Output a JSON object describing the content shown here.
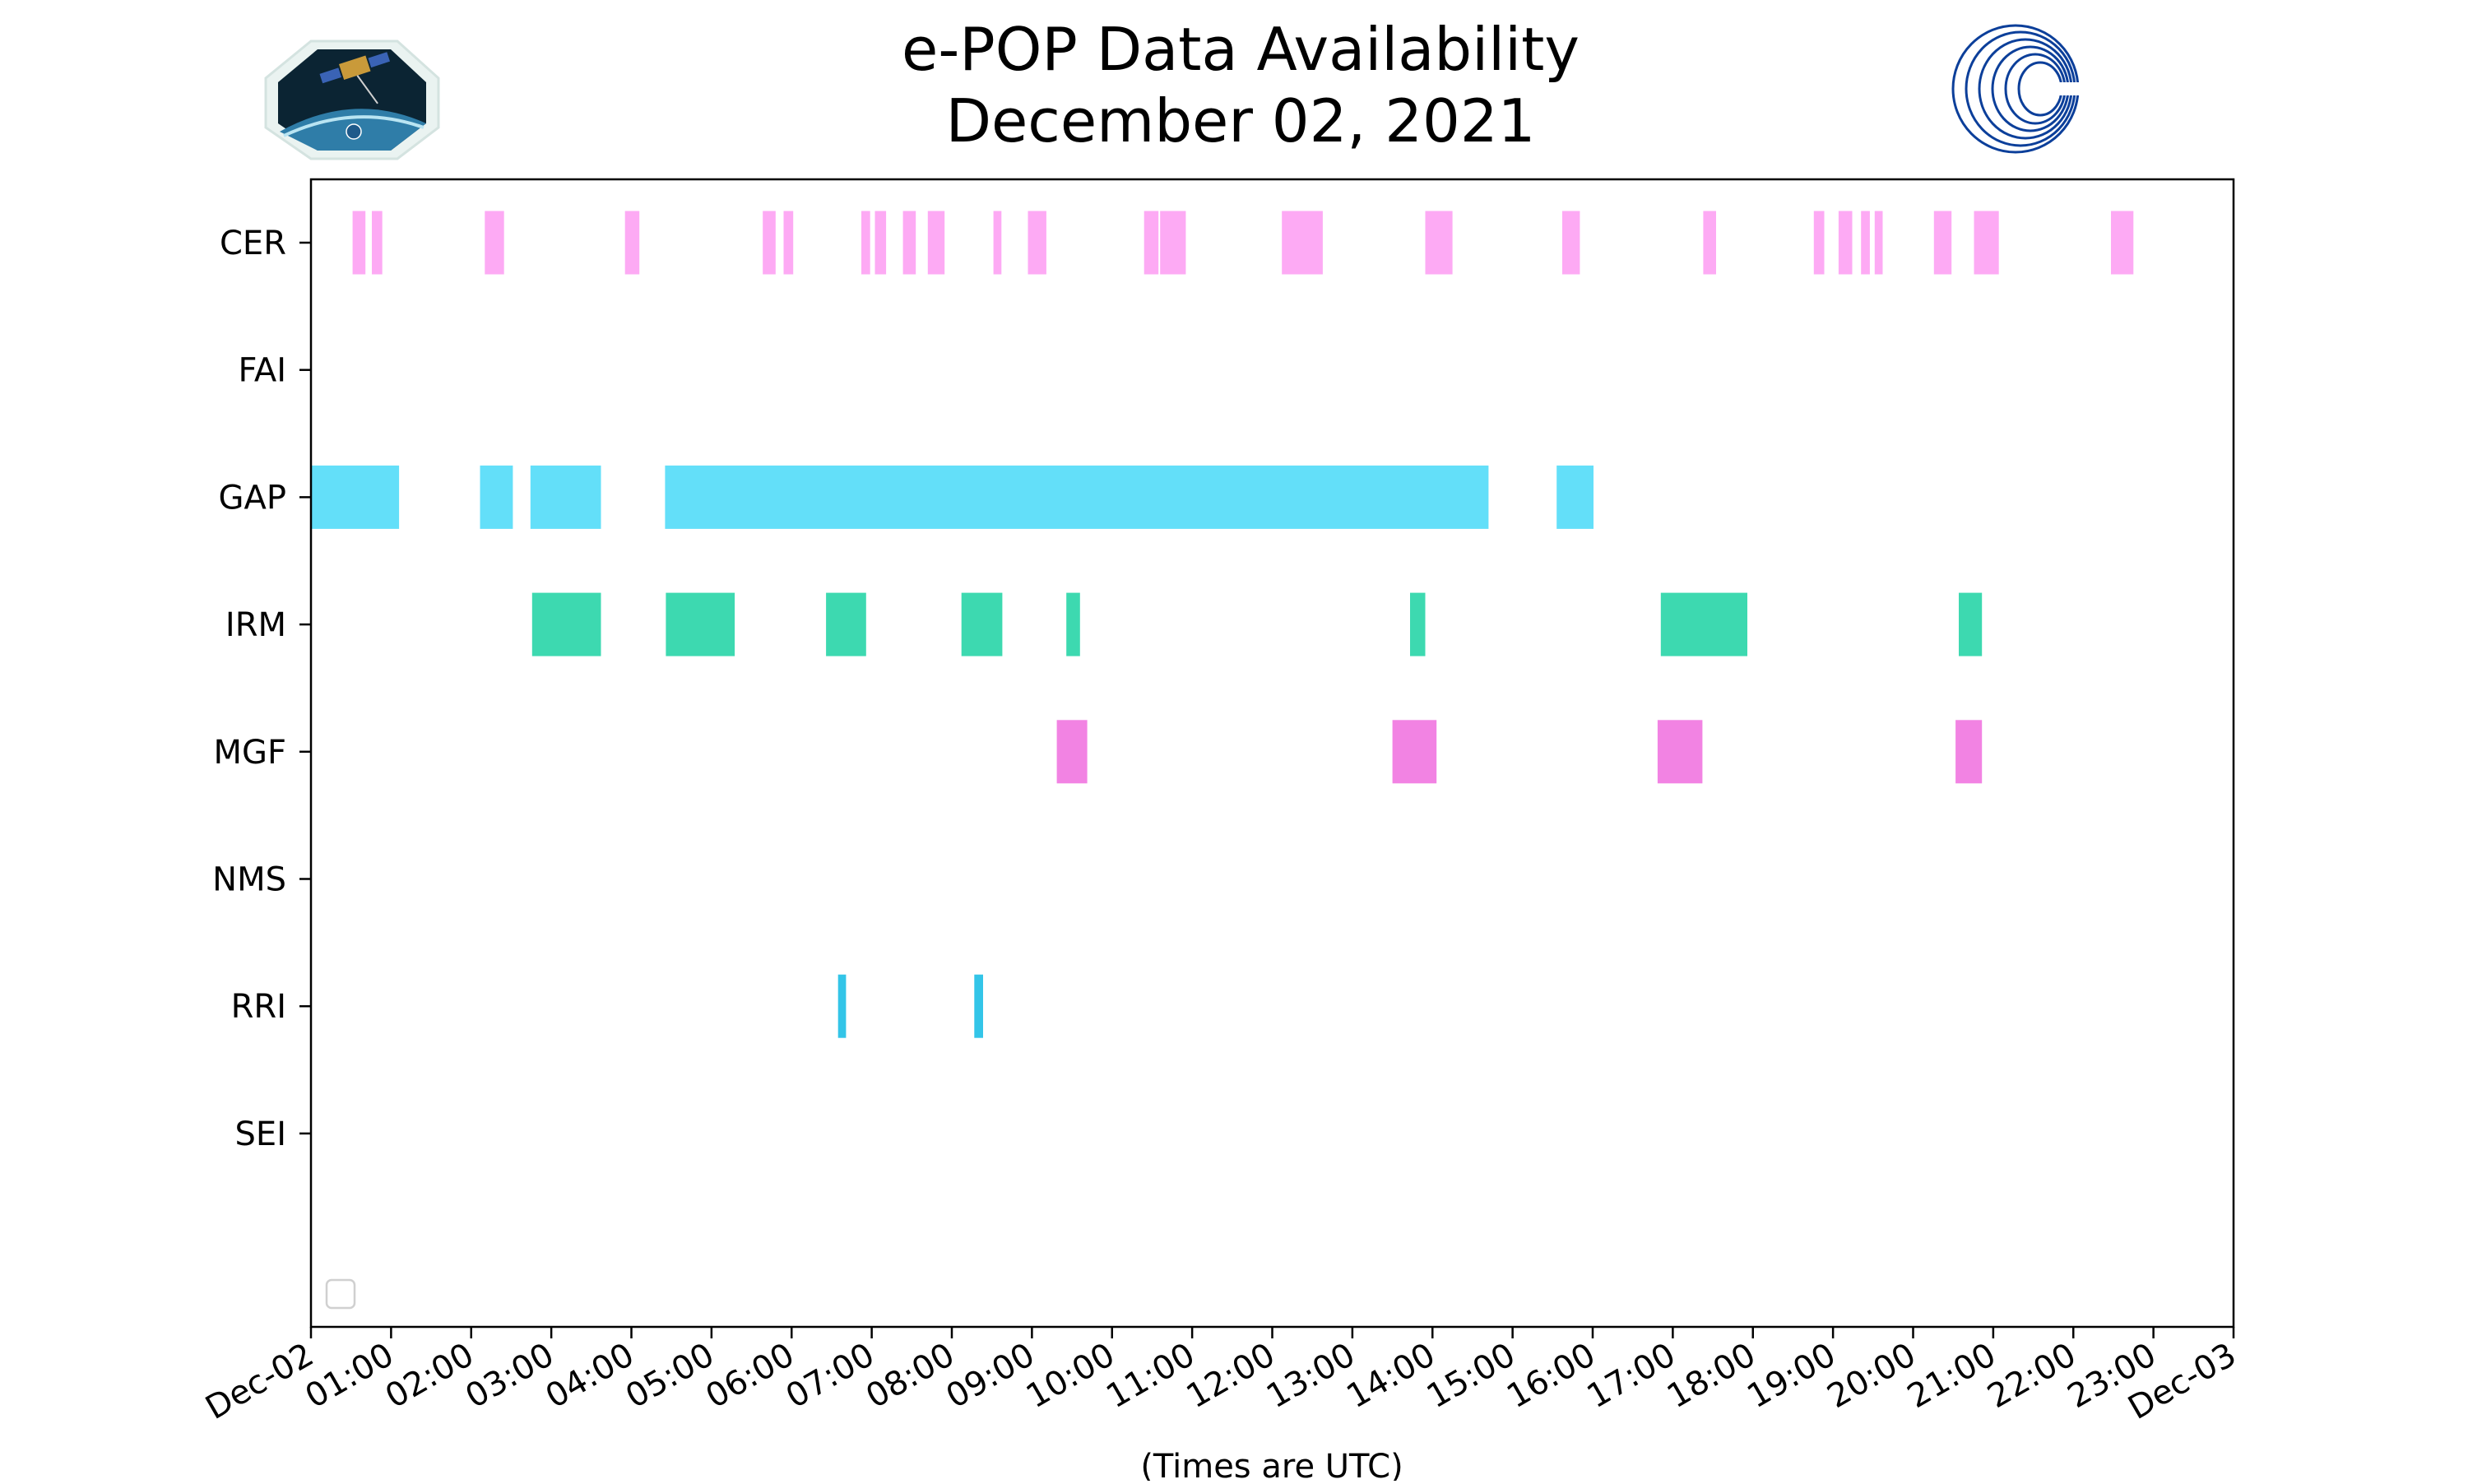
{
  "chart_data": {
    "type": "timeline",
    "title": "e-POP Data Availability",
    "subtitle": "December 02, 2021",
    "xlabel": "(Times are UTC)",
    "ylabel": "",
    "x_unit": "hours",
    "xlim": [
      0,
      24
    ],
    "x_ticks": [
      {
        "value": 0,
        "label": "Dec-02"
      },
      {
        "value": 1,
        "label": "01:00"
      },
      {
        "value": 2,
        "label": "02:00"
      },
      {
        "value": 3,
        "label": "03:00"
      },
      {
        "value": 4,
        "label": "04:00"
      },
      {
        "value": 5,
        "label": "05:00"
      },
      {
        "value": 6,
        "label": "06:00"
      },
      {
        "value": 7,
        "label": "07:00"
      },
      {
        "value": 8,
        "label": "08:00"
      },
      {
        "value": 9,
        "label": "09:00"
      },
      {
        "value": 10,
        "label": "10:00"
      },
      {
        "value": 11,
        "label": "11:00"
      },
      {
        "value": 12,
        "label": "12:00"
      },
      {
        "value": 13,
        "label": "13:00"
      },
      {
        "value": 14,
        "label": "14:00"
      },
      {
        "value": 15,
        "label": "15:00"
      },
      {
        "value": 16,
        "label": "16:00"
      },
      {
        "value": 17,
        "label": "17:00"
      },
      {
        "value": 18,
        "label": "18:00"
      },
      {
        "value": 19,
        "label": "19:00"
      },
      {
        "value": 20,
        "label": "20:00"
      },
      {
        "value": 21,
        "label": "21:00"
      },
      {
        "value": 22,
        "label": "22:00"
      },
      {
        "value": 23,
        "label": "23:00"
      },
      {
        "value": 24,
        "label": "Dec-03"
      }
    ],
    "series": [
      {
        "name": "CER",
        "color": "#fdaaf4",
        "intervals": [
          [
            0.52,
            0.68
          ],
          [
            0.76,
            0.89
          ],
          [
            2.17,
            2.41
          ],
          [
            3.92,
            4.1
          ],
          [
            5.64,
            5.8
          ],
          [
            5.9,
            6.02
          ],
          [
            6.87,
            6.98
          ],
          [
            7.04,
            7.18
          ],
          [
            7.39,
            7.55
          ],
          [
            7.7,
            7.91
          ],
          [
            8.52,
            8.62
          ],
          [
            8.95,
            9.18
          ],
          [
            10.4,
            10.58
          ],
          [
            10.6,
            10.92
          ],
          [
            12.12,
            12.63
          ],
          [
            13.91,
            14.25
          ],
          [
            15.62,
            15.84
          ],
          [
            17.38,
            17.54
          ],
          [
            18.76,
            18.89
          ],
          [
            19.07,
            19.24
          ],
          [
            19.35,
            19.46
          ],
          [
            19.52,
            19.62
          ],
          [
            20.26,
            20.48
          ],
          [
            20.76,
            21.07
          ],
          [
            22.47,
            22.75
          ]
        ]
      },
      {
        "name": "FAI",
        "color": "#ffffff",
        "intervals": []
      },
      {
        "name": "GAP",
        "color": "#63dff9",
        "intervals": [
          [
            0.0,
            1.1
          ],
          [
            2.11,
            2.52
          ],
          [
            2.74,
            3.62
          ],
          [
            4.42,
            14.7
          ],
          [
            15.55,
            16.01
          ]
        ]
      },
      {
        "name": "IRM",
        "color": "#3dd9b0",
        "intervals": [
          [
            2.76,
            3.62
          ],
          [
            4.43,
            5.29
          ],
          [
            6.43,
            6.93
          ],
          [
            8.12,
            8.63
          ],
          [
            9.43,
            9.6
          ],
          [
            13.72,
            13.91
          ],
          [
            16.85,
            17.93
          ],
          [
            20.57,
            20.86
          ]
        ]
      },
      {
        "name": "MGF",
        "color": "#f283e3",
        "intervals": [
          [
            9.31,
            9.69
          ],
          [
            13.5,
            14.05
          ],
          [
            16.81,
            17.37
          ],
          [
            20.53,
            20.86
          ]
        ]
      },
      {
        "name": "NMS",
        "color": "#ffffff",
        "intervals": []
      },
      {
        "name": "RRI",
        "color": "#33c5e8",
        "intervals": [
          [
            6.58,
            6.68
          ],
          [
            8.28,
            8.39
          ]
        ]
      },
      {
        "name": "SEI",
        "color": "#ffffff",
        "intervals": []
      }
    ],
    "legend": {
      "placement": "lower-left",
      "entries": []
    },
    "grid": false
  }
}
